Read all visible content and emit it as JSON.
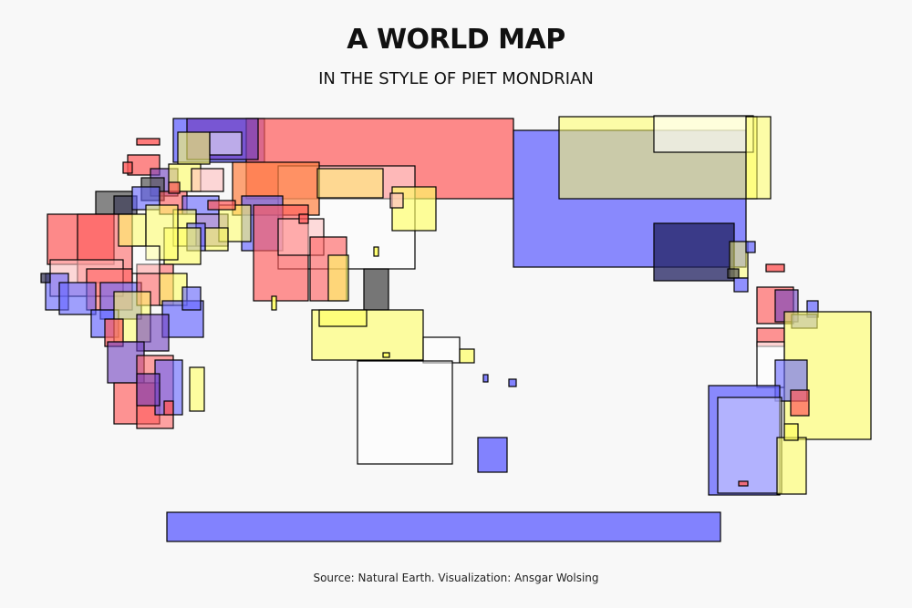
{
  "title": "A WORLD MAP",
  "subtitle": "IN THE STYLE OF PIET MONDRIAN",
  "caption": "Source: Natural Earth. Visualization: Ansgar Wolsing",
  "colors": {
    "red": "#ff5a5a",
    "blue": "#6464ff",
    "yellow": "#ffff64",
    "white": "#ffffff",
    "dark": "#303050",
    "grey": "#555555",
    "orange": "#ff8040",
    "purple": "#7040c0",
    "pink": "#ffc0c0",
    "navy": "#202060",
    "background": "#f8f8f8",
    "border": "#000000"
  }
}
